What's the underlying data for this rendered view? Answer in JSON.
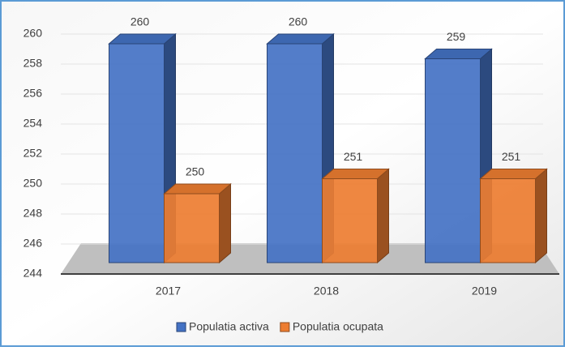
{
  "chart_data": {
    "type": "bar3d",
    "categories": [
      "2017",
      "2018",
      "2019"
    ],
    "series": [
      {
        "name": "Populatia activa",
        "color": "#4472c4",
        "values": [
          260,
          260,
          259
        ]
      },
      {
        "name": "Populatia ocupata",
        "color": "#ed7d31",
        "values": [
          250,
          251,
          251
        ]
      }
    ],
    "ylim": [
      244,
      260
    ],
    "yticks": [
      244,
      246,
      248,
      250,
      252,
      254,
      256,
      258,
      260
    ],
    "grid": true,
    "legend": "bottom"
  }
}
